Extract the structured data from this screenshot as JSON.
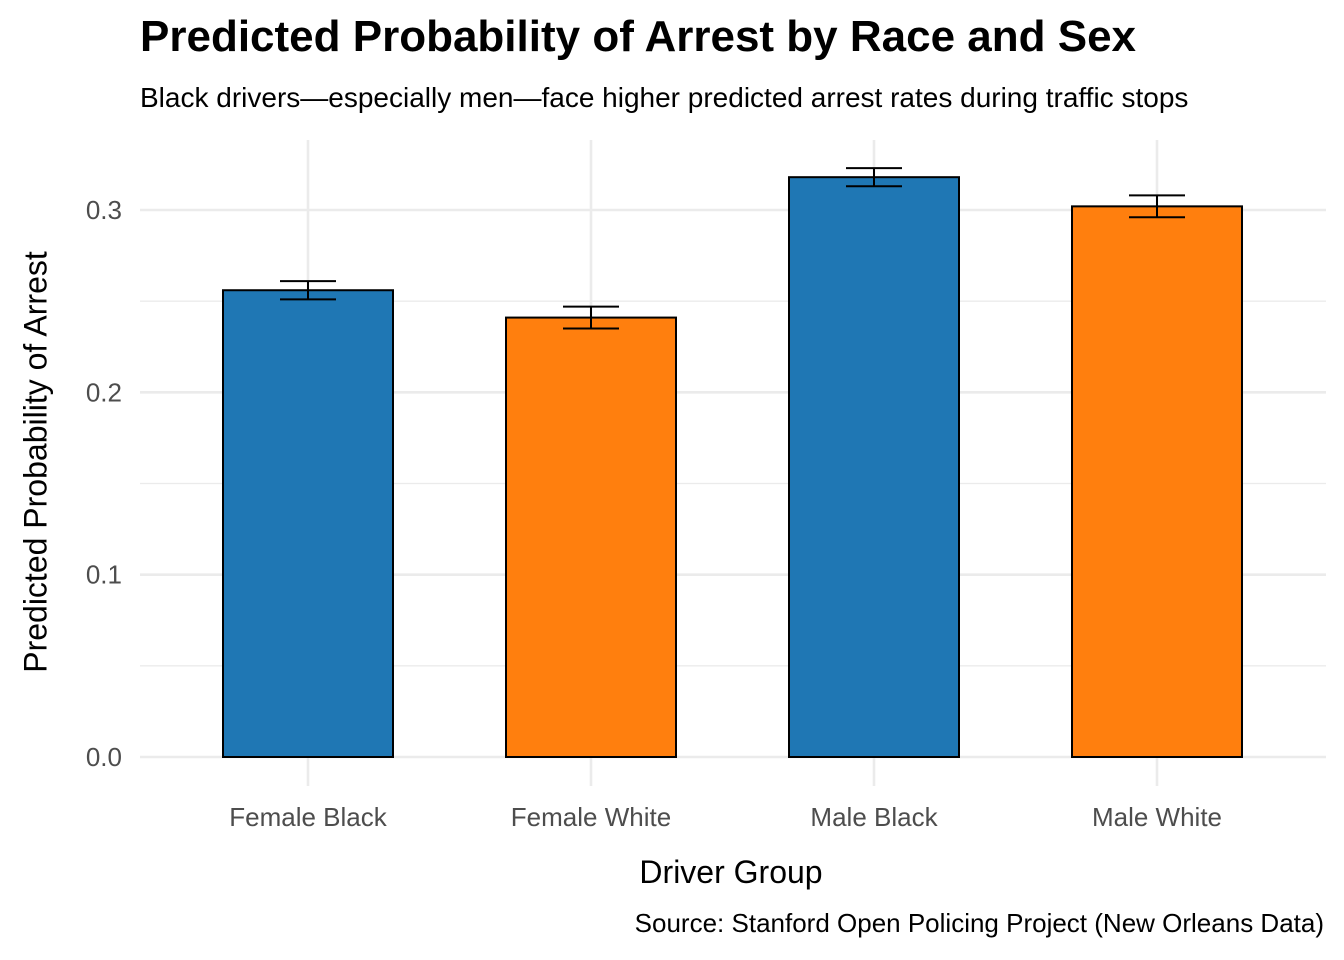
{
  "chart_data": {
    "type": "bar",
    "title": "Predicted Probability of Arrest by Race and Sex",
    "subtitle": "Black drivers—especially men—face higher predicted arrest rates during traffic stops",
    "xlabel": "Driver Group",
    "ylabel": "Predicted Probability of Arrest",
    "caption": "Source: Stanford Open Policing Project (New Orleans Data)",
    "categories": [
      "Female Black",
      "Female White",
      "Male Black",
      "Male White"
    ],
    "values": [
      0.256,
      0.241,
      0.318,
      0.302
    ],
    "error_low": [
      0.251,
      0.235,
      0.313,
      0.296
    ],
    "error_high": [
      0.261,
      0.247,
      0.323,
      0.308
    ],
    "bar_colors": [
      "#1f77b4",
      "#ff7f0e",
      "#1f77b4",
      "#ff7f0e"
    ],
    "ylim": [
      0,
      0.34
    ],
    "yticks": [
      0.0,
      0.1,
      0.2,
      0.3
    ],
    "ytick_labels": [
      "0.0",
      "0.1",
      "0.2",
      "0.3"
    ],
    "grid": true,
    "legend": "none"
  }
}
